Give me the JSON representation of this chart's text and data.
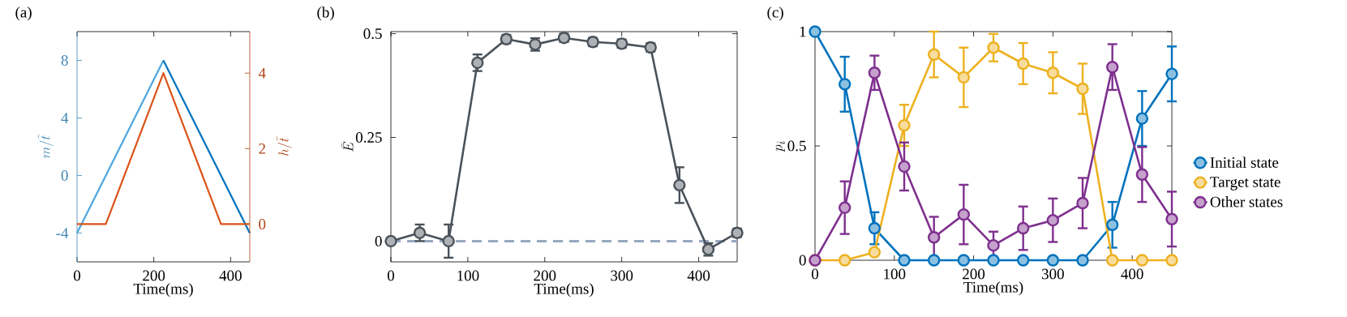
{
  "chart_data": [
    {
      "type": "line",
      "title": "(a)",
      "xlabel": "Time(ms)",
      "ylabel": "m/\\tilde{t}",
      "y2label": "h/\\tilde{t}",
      "xlim": [
        0,
        450
      ],
      "xticks": [
        0,
        200,
        400
      ],
      "ylim": [
        -6,
        10
      ],
      "yticks": [
        -4,
        0,
        4,
        8
      ],
      "y2lim": [
        -1,
        5.1
      ],
      "y2ticks": [
        0,
        2,
        4
      ],
      "series": [
        {
          "color": "#4da6e0",
          "x": [
            0,
            225
          ],
          "values": [
            -4,
            8
          ]
        },
        {
          "color": "#0072bd",
          "x": [
            225,
            450
          ],
          "values": [
            8,
            -4
          ]
        },
        {
          "color": "#d95319",
          "axis": "y2",
          "x": [
            0,
            75,
            225,
            375,
            450
          ],
          "values": [
            0,
            0,
            4,
            0,
            0
          ]
        }
      ]
    },
    {
      "type": "line",
      "title": "(b)",
      "xlabel": "Time(ms)",
      "ylabel": "\\bar{E}",
      "marker": "circle",
      "xlim": [
        0,
        450
      ],
      "xticks": [
        0,
        100,
        200,
        300,
        400
      ],
      "ylim": [
        -0.05,
        0.505
      ],
      "yticks": [
        0,
        0.25,
        0.5
      ],
      "x": [
        0,
        37.5,
        75,
        112.5,
        150,
        187.5,
        225,
        262.5,
        300,
        337.5,
        375,
        412.5,
        450
      ],
      "ref_lines": [
        {
          "axis": "y",
          "value": 0,
          "color": "#97a8c0",
          "line_style": "dashed"
        }
      ],
      "series": [
        {
          "color": "#4a525a",
          "values": [
            0,
            0.02,
            0,
            0.43,
            0.487,
            0.474,
            0.49,
            0.48,
            0.476,
            0.467,
            0.135,
            -0.02,
            0.02
          ],
          "errors": [
            0.005,
            0.02,
            0.04,
            0.02,
            0.01,
            0.015,
            0.01,
            0.01,
            0.01,
            0.01,
            0.043,
            0.015,
            0.01
          ]
        }
      ]
    },
    {
      "type": "line",
      "title": "(c)",
      "xlabel": "Time(ms)",
      "ylabel": "p_i",
      "marker": "circle",
      "legend": "right",
      "xlim": [
        0,
        450
      ],
      "xticks": [
        0,
        100,
        200,
        300,
        400
      ],
      "ylim": [
        0,
        1
      ],
      "yticks": [
        0,
        0.5,
        1
      ],
      "x": [
        0,
        37.5,
        75,
        112.5,
        150,
        187.5,
        225,
        262.5,
        300,
        337.5,
        375,
        412.5,
        450
      ],
      "series": [
        {
          "name": "Initial state",
          "color": "#0072bd",
          "values": [
            1,
            0.77,
            0.14,
            0,
            0,
            0,
            0,
            0,
            0,
            0,
            0.155,
            0.62,
            0.815
          ],
          "errors": [
            null,
            0.12,
            0.07,
            null,
            null,
            null,
            null,
            null,
            null,
            null,
            0.1,
            0.12,
            0.12
          ]
        },
        {
          "name": "Target state",
          "color": "#edb120",
          "values": [
            0,
            0,
            0.035,
            0.59,
            0.9,
            0.8,
            0.93,
            0.86,
            0.82,
            0.75,
            0,
            0,
            0
          ],
          "errors": [
            null,
            null,
            null,
            0.09,
            0.1,
            0.13,
            0.06,
            0.09,
            0.09,
            0.11,
            null,
            null,
            null
          ]
        },
        {
          "name": "Other states",
          "color": "#7e2f8e",
          "values": [
            0,
            0.23,
            0.82,
            0.41,
            0.1,
            0.2,
            0.065,
            0.14,
            0.175,
            0.25,
            0.845,
            0.375,
            0.18
          ],
          "errors": [
            null,
            0.115,
            0.075,
            0.105,
            0.09,
            0.13,
            0.06,
            0.095,
            0.095,
            0.11,
            0.1,
            0.12,
            0.12
          ]
        }
      ]
    }
  ]
}
